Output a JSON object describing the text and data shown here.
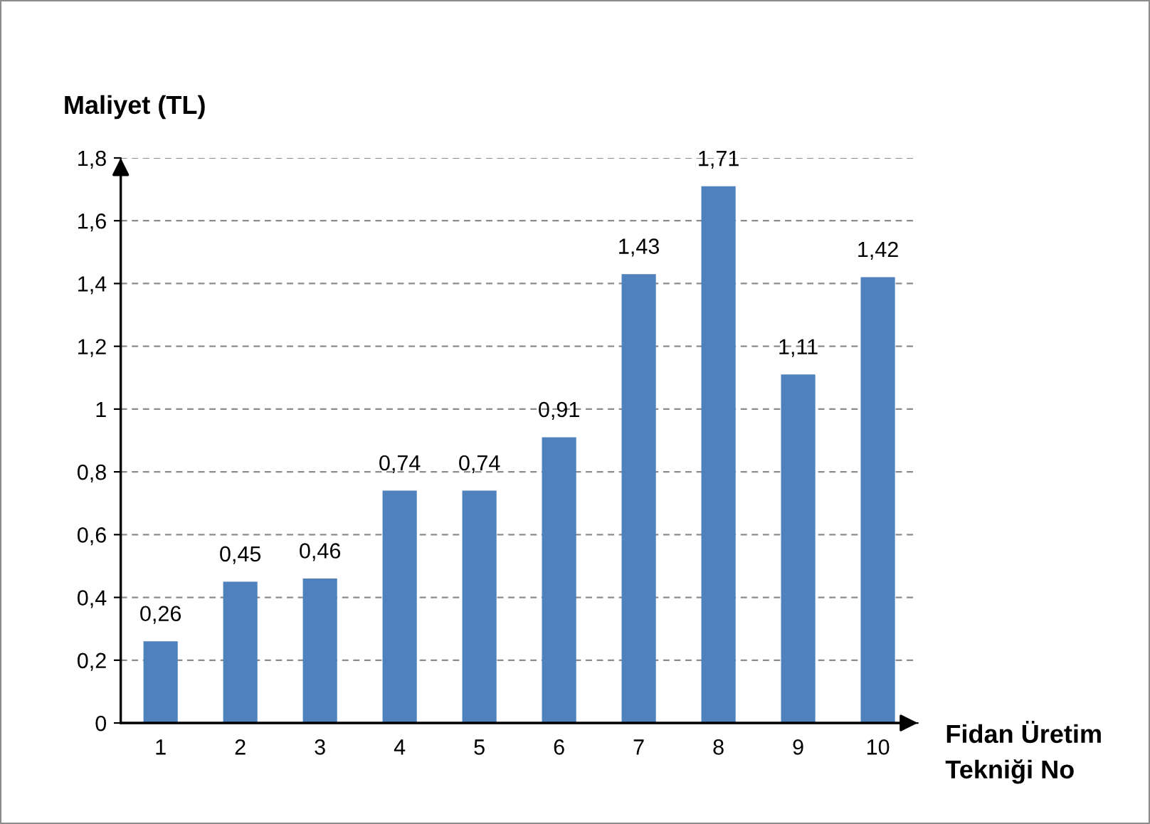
{
  "chart_data": {
    "type": "bar",
    "xlabel": "Fidan Üretim\nTekniği No",
    "ylabel": "Maliyet (TL)",
    "categories": [
      "1",
      "2",
      "3",
      "4",
      "5",
      "6",
      "7",
      "8",
      "9",
      "10"
    ],
    "values": [
      0.26,
      0.45,
      0.46,
      0.74,
      0.74,
      0.91,
      1.43,
      1.71,
      1.11,
      1.42
    ],
    "value_labels": [
      "0,26",
      "0,45",
      "0,46",
      "0,74",
      "0,74",
      "0,91",
      "1,43",
      "1,71",
      "1,11",
      "1,42"
    ],
    "color": "#4f81bd",
    "ylim": [
      0,
      1.8
    ],
    "yticks": [
      0,
      {
        "value": 0.2,
        "label": "0,2"
      },
      {
        "value": 0.4,
        "label": "0,4"
      },
      {
        "value": 0.6,
        "label": "0,6"
      },
      {
        "value": 0.8,
        "label": "0,8"
      },
      1,
      {
        "value": 1.2,
        "label": "1,2"
      },
      {
        "value": 1.4,
        "label": "1,4"
      },
      {
        "value": 1.6,
        "label": "1,6"
      },
      {
        "value": 1.8,
        "label": "1,8"
      }
    ],
    "grid": "y",
    "legend": false
  }
}
